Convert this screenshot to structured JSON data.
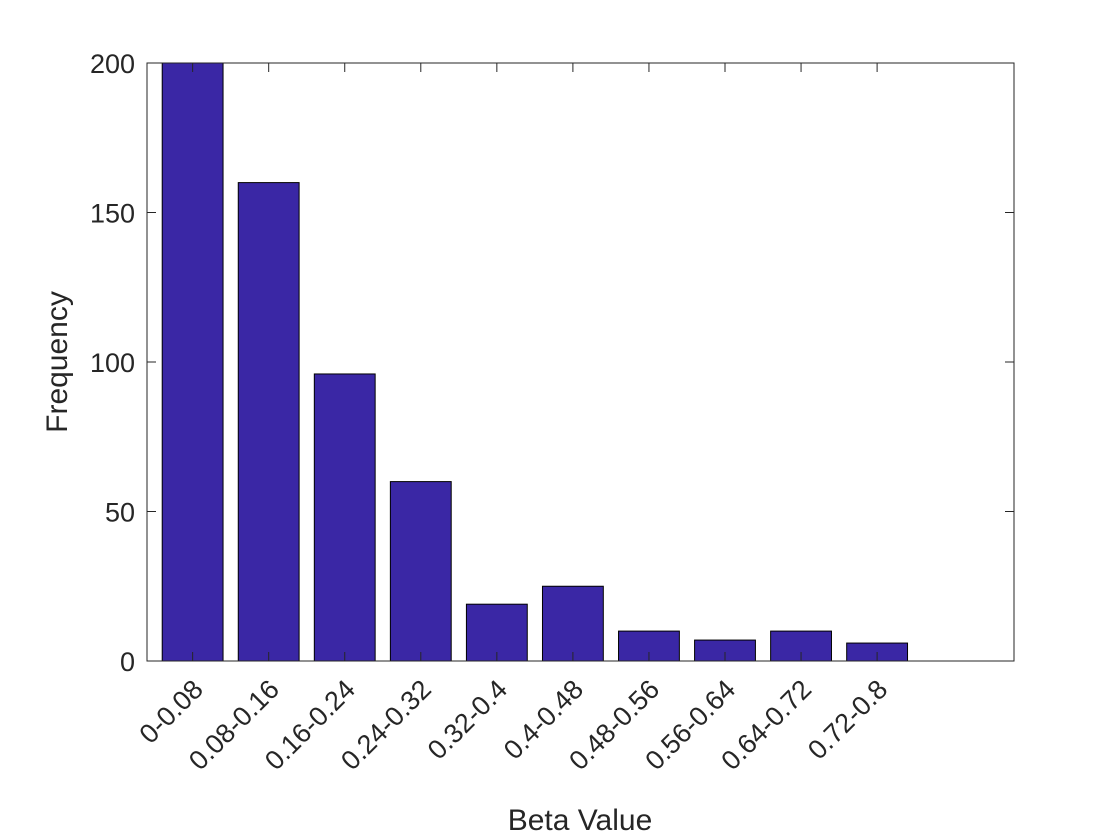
{
  "chart_data": {
    "type": "bar",
    "categories": [
      "0-0.08",
      "0.08-0.16",
      "0.16-0.24",
      "0.24-0.32",
      "0.32-0.4",
      "0.4-0.48",
      "0.48-0.56",
      "0.56-0.64",
      "0.64-0.72",
      "0.72-0.8"
    ],
    "values": [
      200,
      160,
      96,
      60,
      19,
      25,
      10,
      7,
      10,
      6
    ],
    "xlabel": "Beta Value",
    "ylabel": "Frequency",
    "ylim": [
      0,
      200
    ],
    "xlim": [
      0.4,
      11.8
    ],
    "yticks": [
      0,
      50,
      100,
      150,
      200
    ],
    "yticklabels": [
      "0",
      "50",
      "100",
      "150",
      "200"
    ],
    "bar_color": "#3a27a5",
    "grid": false,
    "legend": "none"
  }
}
